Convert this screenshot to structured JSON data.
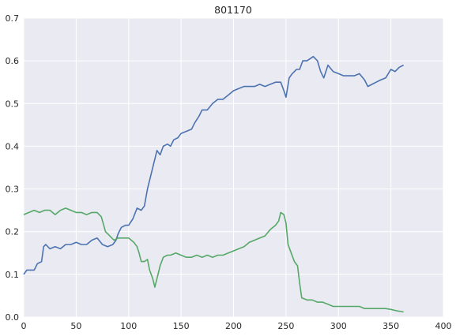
{
  "chart_data": {
    "type": "line",
    "title": "801170",
    "xlabel": "",
    "ylabel": "",
    "xlim": [
      0,
      400
    ],
    "ylim": [
      0,
      0.7
    ],
    "x_ticks": [
      0,
      50,
      100,
      150,
      200,
      250,
      300,
      350,
      400
    ],
    "y_ticks": [
      0.0,
      0.1,
      0.2,
      0.3,
      0.4,
      0.5,
      0.6,
      0.7
    ],
    "grid": true,
    "legend": "none",
    "series": [
      {
        "color": "#4c72b0",
        "points": [
          [
            0,
            0.1
          ],
          [
            3,
            0.11
          ],
          [
            6,
            0.11
          ],
          [
            10,
            0.11
          ],
          [
            13,
            0.125
          ],
          [
            17,
            0.13
          ],
          [
            19,
            0.165
          ],
          [
            21,
            0.17
          ],
          [
            25,
            0.16
          ],
          [
            30,
            0.165
          ],
          [
            35,
            0.16
          ],
          [
            40,
            0.17
          ],
          [
            45,
            0.17
          ],
          [
            50,
            0.175
          ],
          [
            55,
            0.17
          ],
          [
            60,
            0.17
          ],
          [
            65,
            0.18
          ],
          [
            70,
            0.185
          ],
          [
            75,
            0.17
          ],
          [
            80,
            0.165
          ],
          [
            85,
            0.17
          ],
          [
            88,
            0.18
          ],
          [
            90,
            0.195
          ],
          [
            93,
            0.21
          ],
          [
            97,
            0.215
          ],
          [
            100,
            0.215
          ],
          [
            104,
            0.23
          ],
          [
            108,
            0.255
          ],
          [
            112,
            0.25
          ],
          [
            115,
            0.26
          ],
          [
            118,
            0.3
          ],
          [
            121,
            0.33
          ],
          [
            124,
            0.36
          ],
          [
            127,
            0.39
          ],
          [
            130,
            0.38
          ],
          [
            133,
            0.4
          ],
          [
            137,
            0.405
          ],
          [
            140,
            0.4
          ],
          [
            143,
            0.415
          ],
          [
            147,
            0.42
          ],
          [
            150,
            0.43
          ],
          [
            155,
            0.435
          ],
          [
            160,
            0.44
          ],
          [
            163,
            0.455
          ],
          [
            167,
            0.47
          ],
          [
            170,
            0.485
          ],
          [
            175,
            0.485
          ],
          [
            180,
            0.5
          ],
          [
            185,
            0.51
          ],
          [
            190,
            0.51
          ],
          [
            195,
            0.52
          ],
          [
            200,
            0.53
          ],
          [
            205,
            0.535
          ],
          [
            210,
            0.54
          ],
          [
            215,
            0.54
          ],
          [
            220,
            0.54
          ],
          [
            225,
            0.545
          ],
          [
            230,
            0.54
          ],
          [
            235,
            0.545
          ],
          [
            240,
            0.55
          ],
          [
            245,
            0.55
          ],
          [
            248,
            0.53
          ],
          [
            250,
            0.515
          ],
          [
            253,
            0.56
          ],
          [
            256,
            0.57
          ],
          [
            260,
            0.58
          ],
          [
            263,
            0.58
          ],
          [
            266,
            0.6
          ],
          [
            270,
            0.6
          ],
          [
            273,
            0.605
          ],
          [
            276,
            0.61
          ],
          [
            280,
            0.6
          ],
          [
            283,
            0.575
          ],
          [
            286,
            0.56
          ],
          [
            290,
            0.59
          ],
          [
            295,
            0.575
          ],
          [
            300,
            0.57
          ],
          [
            305,
            0.565
          ],
          [
            310,
            0.565
          ],
          [
            315,
            0.565
          ],
          [
            320,
            0.57
          ],
          [
            325,
            0.555
          ],
          [
            328,
            0.54
          ],
          [
            332,
            0.545
          ],
          [
            336,
            0.55
          ],
          [
            340,
            0.555
          ],
          [
            345,
            0.56
          ],
          [
            350,
            0.58
          ],
          [
            354,
            0.575
          ],
          [
            358,
            0.585
          ],
          [
            362,
            0.59
          ]
        ]
      },
      {
        "color": "#55a868",
        "points": [
          [
            0,
            0.24
          ],
          [
            5,
            0.245
          ],
          [
            10,
            0.25
          ],
          [
            15,
            0.245
          ],
          [
            20,
            0.25
          ],
          [
            25,
            0.25
          ],
          [
            30,
            0.24
          ],
          [
            35,
            0.25
          ],
          [
            40,
            0.255
          ],
          [
            45,
            0.25
          ],
          [
            50,
            0.245
          ],
          [
            55,
            0.245
          ],
          [
            60,
            0.24
          ],
          [
            65,
            0.245
          ],
          [
            70,
            0.245
          ],
          [
            74,
            0.235
          ],
          [
            78,
            0.2
          ],
          [
            82,
            0.19
          ],
          [
            86,
            0.18
          ],
          [
            90,
            0.185
          ],
          [
            95,
            0.185
          ],
          [
            100,
            0.185
          ],
          [
            105,
            0.175
          ],
          [
            108,
            0.165
          ],
          [
            110,
            0.15
          ],
          [
            112,
            0.13
          ],
          [
            115,
            0.13
          ],
          [
            118,
            0.135
          ],
          [
            120,
            0.11
          ],
          [
            123,
            0.09
          ],
          [
            125,
            0.07
          ],
          [
            127,
            0.09
          ],
          [
            130,
            0.12
          ],
          [
            133,
            0.14
          ],
          [
            137,
            0.145
          ],
          [
            140,
            0.145
          ],
          [
            145,
            0.15
          ],
          [
            150,
            0.145
          ],
          [
            155,
            0.14
          ],
          [
            160,
            0.14
          ],
          [
            165,
            0.145
          ],
          [
            170,
            0.14
          ],
          [
            175,
            0.145
          ],
          [
            180,
            0.14
          ],
          [
            185,
            0.145
          ],
          [
            190,
            0.145
          ],
          [
            195,
            0.15
          ],
          [
            200,
            0.155
          ],
          [
            205,
            0.16
          ],
          [
            210,
            0.165
          ],
          [
            215,
            0.175
          ],
          [
            220,
            0.18
          ],
          [
            225,
            0.185
          ],
          [
            230,
            0.19
          ],
          [
            235,
            0.205
          ],
          [
            240,
            0.215
          ],
          [
            243,
            0.225
          ],
          [
            245,
            0.245
          ],
          [
            248,
            0.24
          ],
          [
            250,
            0.22
          ],
          [
            252,
            0.17
          ],
          [
            255,
            0.15
          ],
          [
            258,
            0.13
          ],
          [
            261,
            0.12
          ],
          [
            263,
            0.08
          ],
          [
            265,
            0.045
          ],
          [
            270,
            0.04
          ],
          [
            275,
            0.04
          ],
          [
            280,
            0.035
          ],
          [
            285,
            0.035
          ],
          [
            290,
            0.03
          ],
          [
            295,
            0.025
          ],
          [
            300,
            0.025
          ],
          [
            305,
            0.025
          ],
          [
            310,
            0.025
          ],
          [
            315,
            0.025
          ],
          [
            320,
            0.025
          ],
          [
            325,
            0.02
          ],
          [
            330,
            0.02
          ],
          [
            335,
            0.02
          ],
          [
            340,
            0.02
          ],
          [
            345,
            0.02
          ],
          [
            350,
            0.018
          ],
          [
            355,
            0.015
          ],
          [
            360,
            0.013
          ],
          [
            362,
            0.012
          ]
        ]
      }
    ]
  }
}
